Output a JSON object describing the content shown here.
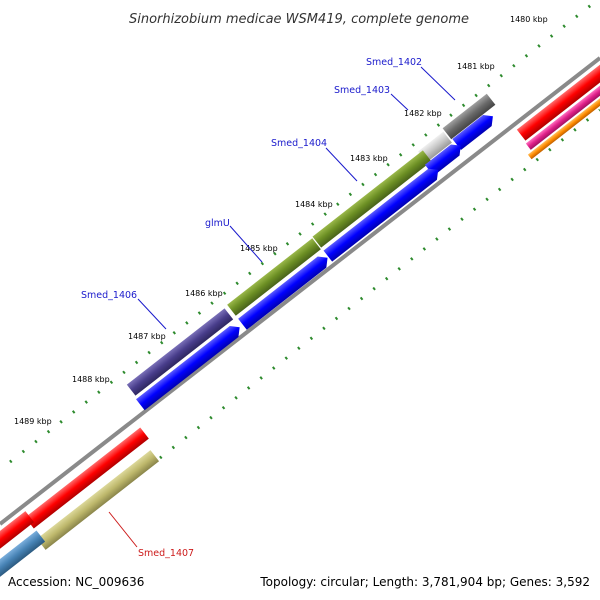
{
  "title": "Sinorhizobium medicae WSM419, complete genome",
  "footer": {
    "accession": "Accession: NC_009636",
    "summary": "Topology: circular; Length: 3,781,904 bp; Genes: 3,592"
  },
  "ticks": [
    "1480 kbp",
    "1481 kbp",
    "1482 kbp",
    "1483 kbp",
    "1484 kbp",
    "1485 kbp",
    "1486 kbp",
    "1487 kbp",
    "1488 kbp",
    "1489 kbp"
  ],
  "gene_labels": [
    {
      "text": "Smed_1402",
      "color": "#1a1acc"
    },
    {
      "text": "Smed_1403",
      "color": "#1a1acc"
    },
    {
      "text": "Smed_1404",
      "color": "#1a1acc"
    },
    {
      "text": "glmU",
      "color": "#1a1acc"
    },
    {
      "text": "Smed_1406",
      "color": "#1a1acc"
    },
    {
      "text": "Smed_1407",
      "color": "#cc1a1a"
    }
  ],
  "colors": {
    "backbone": "#8a8a8a",
    "tick": "#2e8b2e",
    "cds": "#0000ff",
    "gene_red": "#ff0000",
    "gene_green": "#6b8e23",
    "gene_purple": "#483d8b",
    "gene_grey": "#696969",
    "gene_lightgrey": "#c8c8c8",
    "gene_khaki": "#bdb76b",
    "gene_steel": "#4682b4",
    "gene_pink": "#e0208a",
    "gene_orange": "#ff8c00"
  }
}
